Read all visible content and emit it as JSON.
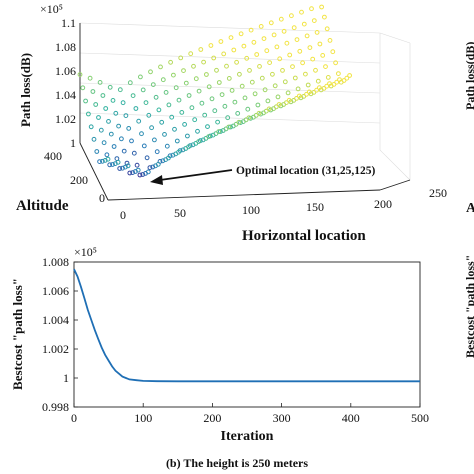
{
  "chart_data": [
    {
      "type": "scatter",
      "dimension": "3d",
      "ylabel": "Path loss(dB)",
      "xlabel": "Horizontal location",
      "zlabel_side": "Altitude",
      "y_exponent": "×10⁵",
      "ylim": [
        1.0,
        1.1
      ],
      "y_ticks": [
        "1",
        "1.02",
        "1.04",
        "1.06",
        "1.08",
        "1.1"
      ],
      "x_ticks": [
        "0",
        "50",
        "100",
        "150",
        "200",
        "250"
      ],
      "z_ticks": [
        "0",
        "200",
        "400"
      ],
      "colormap": [
        "#3b1f8c",
        "#2a7db8",
        "#32b3a0",
        "#8fd36a",
        "#f2e444"
      ],
      "annotation": "Optimal location (31,25,125)",
      "optimal_point": {
        "x": 31,
        "altitude": 125,
        "value": 1.0
      }
    },
    {
      "type": "line",
      "xlabel": "Iteration",
      "ylabel": "Bestcost \"path loss\"",
      "y_exponent": "×10⁵",
      "xlim": [
        0,
        500
      ],
      "ylim": [
        0.998,
        1.008
      ],
      "x_ticks": [
        "0",
        "100",
        "200",
        "300",
        "400",
        "500"
      ],
      "y_ticks": [
        "0.998",
        "1",
        "1.002",
        "1.004",
        "1.006",
        "1.008"
      ],
      "grid": false,
      "series": [
        {
          "color": "#1f6fb5",
          "x": [
            0,
            5,
            10,
            15,
            20,
            25,
            30,
            35,
            40,
            45,
            50,
            55,
            60,
            65,
            70,
            75,
            80,
            90,
            100,
            120,
            150,
            200,
            300,
            400,
            500
          ],
          "y": [
            1.0075,
            1.007,
            1.0063,
            1.0055,
            1.0047,
            1.004,
            1.0033,
            1.0027,
            1.0021,
            1.0016,
            1.0012,
            1.0008,
            1.0005,
            1.0003,
            1.0001,
            1.0,
            0.9999,
            0.99985,
            0.9998,
            0.99978,
            0.99977,
            0.99977,
            0.99977,
            0.99977,
            0.99977
          ]
        }
      ]
    }
  ],
  "caption": "(b) The height is 250 meters",
  "cropped_right_labels": [
    "Path loss(dB)",
    "Bestcost \"path loss\""
  ],
  "cropped_right_letter": "A"
}
